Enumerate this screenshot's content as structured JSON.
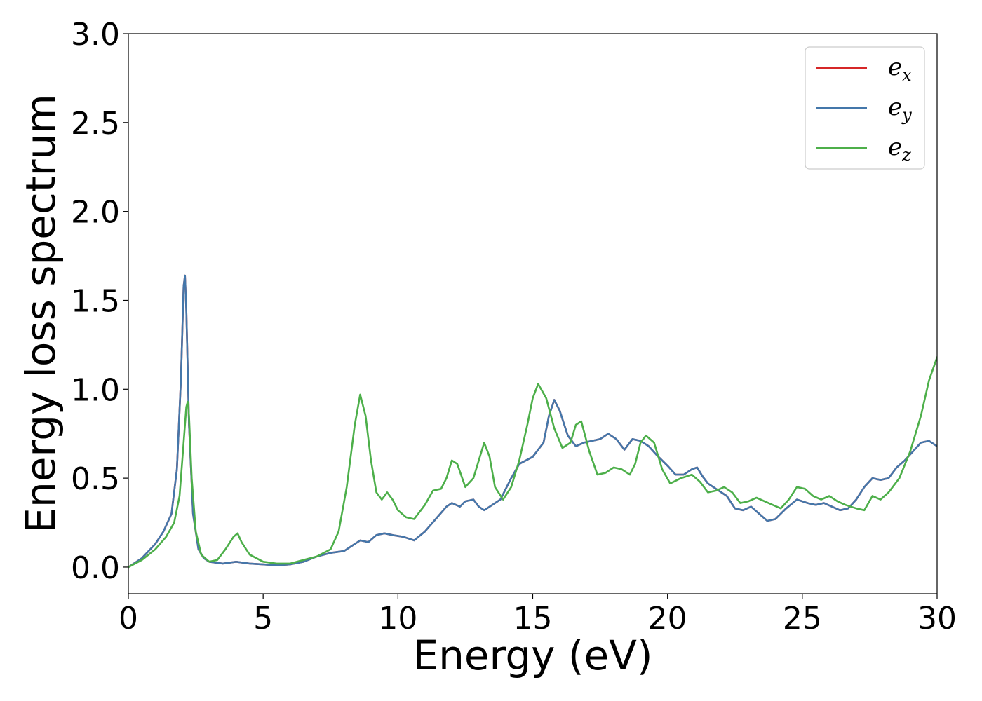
{
  "chart_data": {
    "type": "line",
    "title": "",
    "xlabel": "Energy (eV)",
    "ylabel": "Energy loss spectrum",
    "xlim": [
      0,
      30
    ],
    "ylim": [
      -0.15,
      3.0
    ],
    "xticks": [
      0,
      5,
      10,
      15,
      20,
      25,
      30
    ],
    "xtick_labels": [
      "0",
      "5",
      "10",
      "15",
      "20",
      "25",
      "30"
    ],
    "yticks": [
      0.0,
      0.5,
      1.0,
      1.5,
      2.0,
      2.5,
      3.0
    ],
    "ytick_labels": [
      "0.0",
      "0.5",
      "1.0",
      "1.5",
      "2.0",
      "2.5",
      "3.0"
    ],
    "grid": false,
    "legend": "top-right",
    "series": [
      {
        "name": "e",
        "sub": "x",
        "color": "#d62728",
        "x": [
          0,
          0.5,
          1.0,
          1.3,
          1.6,
          1.8,
          1.95,
          2.05,
          2.1,
          2.15,
          2.25,
          2.4,
          2.6,
          2.8,
          3.0,
          3.5,
          4.0,
          4.5,
          5.0,
          5.5,
          6.0,
          6.5,
          7.0,
          7.5,
          8.0,
          8.3,
          8.6,
          8.9,
          9.2,
          9.5,
          9.8,
          10.2,
          10.6,
          11.0,
          11.4,
          11.8,
          12.0,
          12.3,
          12.5,
          12.8,
          13.0,
          13.2,
          13.5,
          13.8,
          14.2,
          14.5,
          15.0,
          15.4,
          15.6,
          15.8,
          16.0,
          16.3,
          16.6,
          16.9,
          17.2,
          17.5,
          17.8,
          18.1,
          18.4,
          18.7,
          19.0,
          19.3,
          19.6,
          20.0,
          20.3,
          20.6,
          20.9,
          21.1,
          21.3,
          21.5,
          21.8,
          22.2,
          22.5,
          22.8,
          23.1,
          23.4,
          23.7,
          24.0,
          24.4,
          24.8,
          25.2,
          25.5,
          25.8,
          26.1,
          26.4,
          26.7,
          27.0,
          27.3,
          27.6,
          27.9,
          28.2,
          28.5,
          28.8,
          29.1,
          29.4,
          29.7,
          30.0
        ],
        "y": [
          0.0,
          0.05,
          0.13,
          0.2,
          0.3,
          0.55,
          1.05,
          1.58,
          1.64,
          1.45,
          0.8,
          0.3,
          0.1,
          0.05,
          0.03,
          0.02,
          0.03,
          0.02,
          0.015,
          0.01,
          0.015,
          0.03,
          0.06,
          0.08,
          0.09,
          0.12,
          0.15,
          0.14,
          0.18,
          0.19,
          0.18,
          0.17,
          0.15,
          0.2,
          0.27,
          0.34,
          0.36,
          0.34,
          0.37,
          0.38,
          0.34,
          0.32,
          0.35,
          0.38,
          0.5,
          0.58,
          0.62,
          0.7,
          0.85,
          0.94,
          0.88,
          0.74,
          0.68,
          0.7,
          0.71,
          0.72,
          0.75,
          0.72,
          0.66,
          0.72,
          0.71,
          0.68,
          0.63,
          0.57,
          0.52,
          0.52,
          0.55,
          0.56,
          0.51,
          0.47,
          0.44,
          0.4,
          0.33,
          0.32,
          0.34,
          0.3,
          0.26,
          0.27,
          0.33,
          0.38,
          0.36,
          0.35,
          0.36,
          0.34,
          0.32,
          0.33,
          0.38,
          0.45,
          0.5,
          0.49,
          0.5,
          0.56,
          0.6,
          0.65,
          0.7,
          0.71,
          0.68
        ]
      },
      {
        "name": "e",
        "sub": "y",
        "color": "#4477aa",
        "x": [
          0,
          0.5,
          1.0,
          1.3,
          1.6,
          1.8,
          1.95,
          2.05,
          2.1,
          2.15,
          2.25,
          2.4,
          2.6,
          2.8,
          3.0,
          3.5,
          4.0,
          4.5,
          5.0,
          5.5,
          6.0,
          6.5,
          7.0,
          7.5,
          8.0,
          8.3,
          8.6,
          8.9,
          9.2,
          9.5,
          9.8,
          10.2,
          10.6,
          11.0,
          11.4,
          11.8,
          12.0,
          12.3,
          12.5,
          12.8,
          13.0,
          13.2,
          13.5,
          13.8,
          14.2,
          14.5,
          15.0,
          15.4,
          15.6,
          15.8,
          16.0,
          16.3,
          16.6,
          16.9,
          17.2,
          17.5,
          17.8,
          18.1,
          18.4,
          18.7,
          19.0,
          19.3,
          19.6,
          20.0,
          20.3,
          20.6,
          20.9,
          21.1,
          21.3,
          21.5,
          21.8,
          22.2,
          22.5,
          22.8,
          23.1,
          23.4,
          23.7,
          24.0,
          24.4,
          24.8,
          25.2,
          25.5,
          25.8,
          26.1,
          26.4,
          26.7,
          27.0,
          27.3,
          27.6,
          27.9,
          28.2,
          28.5,
          28.8,
          29.1,
          29.4,
          29.7,
          30.0
        ],
        "y": [
          0.0,
          0.05,
          0.13,
          0.2,
          0.3,
          0.55,
          1.05,
          1.58,
          1.64,
          1.45,
          0.8,
          0.3,
          0.1,
          0.05,
          0.03,
          0.02,
          0.03,
          0.02,
          0.015,
          0.01,
          0.015,
          0.03,
          0.06,
          0.08,
          0.09,
          0.12,
          0.15,
          0.14,
          0.18,
          0.19,
          0.18,
          0.17,
          0.15,
          0.2,
          0.27,
          0.34,
          0.36,
          0.34,
          0.37,
          0.38,
          0.34,
          0.32,
          0.35,
          0.38,
          0.5,
          0.58,
          0.62,
          0.7,
          0.85,
          0.94,
          0.88,
          0.74,
          0.68,
          0.7,
          0.71,
          0.72,
          0.75,
          0.72,
          0.66,
          0.72,
          0.71,
          0.68,
          0.63,
          0.57,
          0.52,
          0.52,
          0.55,
          0.56,
          0.51,
          0.47,
          0.44,
          0.4,
          0.33,
          0.32,
          0.34,
          0.3,
          0.26,
          0.27,
          0.33,
          0.38,
          0.36,
          0.35,
          0.36,
          0.34,
          0.32,
          0.33,
          0.38,
          0.45,
          0.5,
          0.49,
          0.5,
          0.56,
          0.6,
          0.65,
          0.7,
          0.71,
          0.68
        ]
      },
      {
        "name": "e",
        "sub": "z",
        "color": "#4daf4a",
        "x": [
          0,
          0.5,
          1.0,
          1.4,
          1.7,
          1.9,
          2.05,
          2.15,
          2.2,
          2.25,
          2.35,
          2.5,
          2.7,
          3.0,
          3.3,
          3.6,
          3.9,
          4.05,
          4.2,
          4.5,
          5.0,
          5.5,
          6.0,
          6.5,
          7.0,
          7.5,
          7.8,
          8.1,
          8.4,
          8.6,
          8.8,
          9.0,
          9.2,
          9.4,
          9.6,
          9.8,
          10.0,
          10.3,
          10.6,
          11.0,
          11.3,
          11.6,
          11.8,
          12.0,
          12.2,
          12.5,
          12.8,
          13.0,
          13.2,
          13.4,
          13.6,
          13.9,
          14.2,
          14.5,
          14.8,
          15.0,
          15.2,
          15.5,
          15.8,
          16.1,
          16.4,
          16.6,
          16.8,
          17.1,
          17.4,
          17.7,
          18.0,
          18.3,
          18.6,
          18.8,
          19.0,
          19.2,
          19.5,
          19.8,
          20.1,
          20.5,
          20.9,
          21.2,
          21.5,
          21.8,
          22.1,
          22.4,
          22.7,
          23.0,
          23.3,
          23.6,
          23.9,
          24.2,
          24.5,
          24.8,
          25.1,
          25.4,
          25.7,
          26.0,
          26.3,
          26.6,
          27.0,
          27.3,
          27.6,
          27.9,
          28.2,
          28.6,
          29.0,
          29.4,
          29.7,
          30.0
        ],
        "y": [
          0.0,
          0.04,
          0.1,
          0.17,
          0.25,
          0.4,
          0.7,
          0.9,
          0.93,
          0.85,
          0.5,
          0.2,
          0.07,
          0.03,
          0.04,
          0.1,
          0.17,
          0.19,
          0.14,
          0.07,
          0.03,
          0.02,
          0.02,
          0.04,
          0.06,
          0.1,
          0.2,
          0.45,
          0.8,
          0.97,
          0.85,
          0.6,
          0.42,
          0.38,
          0.42,
          0.38,
          0.32,
          0.28,
          0.27,
          0.35,
          0.43,
          0.44,
          0.5,
          0.6,
          0.58,
          0.45,
          0.5,
          0.6,
          0.7,
          0.62,
          0.45,
          0.38,
          0.45,
          0.6,
          0.8,
          0.95,
          1.03,
          0.95,
          0.78,
          0.67,
          0.7,
          0.8,
          0.82,
          0.65,
          0.52,
          0.53,
          0.56,
          0.55,
          0.52,
          0.58,
          0.7,
          0.74,
          0.7,
          0.55,
          0.47,
          0.5,
          0.52,
          0.48,
          0.42,
          0.43,
          0.45,
          0.42,
          0.36,
          0.37,
          0.39,
          0.37,
          0.35,
          0.33,
          0.38,
          0.45,
          0.44,
          0.4,
          0.38,
          0.4,
          0.37,
          0.35,
          0.33,
          0.32,
          0.4,
          0.38,
          0.42,
          0.5,
          0.65,
          0.85,
          1.05,
          1.18
        ]
      }
    ]
  }
}
